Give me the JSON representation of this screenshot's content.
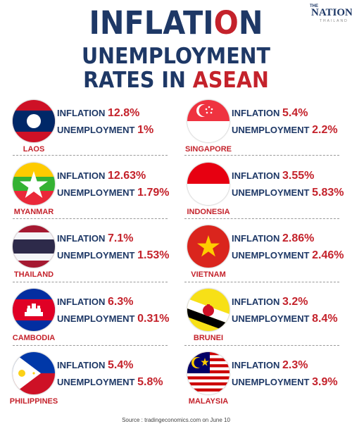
{
  "header": {
    "title_part1": "INFLATI",
    "title_part2": "O",
    "title_part3": "N",
    "line2": "UNEMPLOYMENT",
    "line3_part1": "RATES IN ",
    "line3_part2": "ASEAN"
  },
  "logo": {
    "the": "THE",
    "nation": "NATION",
    "thai": "THAILAND"
  },
  "labels": {
    "inflation": "INFLATION",
    "unemployment": "UNEMPLOYMENT"
  },
  "countries": [
    {
      "name": "LAOS",
      "inflation": "12.8%",
      "unemployment": "1%",
      "flag_icon": "laos-flag-icon"
    },
    {
      "name": "SINGAPORE",
      "inflation": "5.4%",
      "unemployment": "2.2%",
      "flag_icon": "singapore-flag-icon"
    },
    {
      "name": "MYANMAR",
      "inflation": "12.63%",
      "unemployment": "1.79%",
      "flag_icon": "myanmar-flag-icon"
    },
    {
      "name": "INDONESIA",
      "inflation": "3.55%",
      "unemployment": "5.83%",
      "flag_icon": "indonesia-flag-icon"
    },
    {
      "name": "THAILAND",
      "inflation": "7.1%",
      "unemployment": "1.53%",
      "flag_icon": "thailand-flag-icon"
    },
    {
      "name": "VIETNAM",
      "inflation": "2.86%",
      "unemployment": "2.46%",
      "flag_icon": "vietnam-flag-icon"
    },
    {
      "name": "CAMBODIA",
      "inflation": "6.3%",
      "unemployment": "0.31%",
      "flag_icon": "cambodia-flag-icon"
    },
    {
      "name": "BRUNEI",
      "inflation": "3.2%",
      "unemployment": "8.4%",
      "flag_icon": "brunei-flag-icon"
    },
    {
      "name": "PHILIPPINES",
      "inflation": "5.4%",
      "unemployment": "5.8%",
      "flag_icon": "philippines-flag-icon"
    },
    {
      "name": "MALAYSIA",
      "inflation": "2.3%",
      "unemployment": "3.9%",
      "flag_icon": "malaysia-flag-icon"
    }
  ],
  "source": "Source : tradingeconomics.com on June 10",
  "colors": {
    "navy": "#1e3866",
    "red": "#c4222b"
  }
}
